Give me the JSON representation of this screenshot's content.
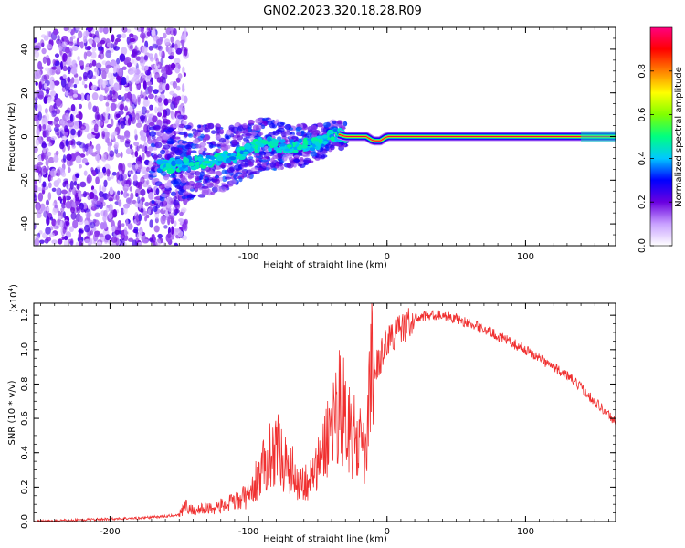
{
  "figure": {
    "title": "GN02.2023.320.18.28.R09"
  },
  "chart_data": [
    {
      "type": "heatmap",
      "xlabel": "Height of straight line (km)",
      "ylabel": "Frequency (Hz)",
      "xlim": [
        -255,
        165
      ],
      "ylim": [
        -50,
        50
      ],
      "xticks": [
        -200,
        -100,
        0,
        100
      ],
      "yticks": [
        -40,
        -20,
        0,
        20,
        40
      ],
      "colorbar": {
        "label": "Normalized spectral amplitude",
        "range": [
          0,
          1
        ],
        "ticks": [
          "0.0",
          "0.2",
          "0.4",
          "0.6",
          "0.8"
        ],
        "colors": [
          "#ffffff",
          "#c8a0ff",
          "#6a00e0",
          "#0000ff",
          "#00c8ff",
          "#00ff80",
          "#80ff00",
          "#ffff00",
          "#ff8000",
          "#ff0000",
          "#ff0080"
        ]
      },
      "ridge": {
        "x": [
          -170,
          -150,
          -130,
          -110,
          -100,
          -90,
          -80,
          -70,
          -60,
          -50,
          -40,
          -35,
          -30,
          -20,
          -15,
          -10,
          -5,
          0,
          20,
          50,
          75,
          100,
          130,
          165
        ],
        "y": [
          -14,
          -13,
          -11,
          -9,
          -6,
          -3,
          -4,
          -5,
          -4,
          -3,
          0,
          1,
          0,
          0,
          0,
          -2,
          -2,
          0,
          0,
          0,
          0,
          0,
          0,
          0
        ]
      }
    },
    {
      "type": "line",
      "xlabel": "Height of straight line (km)",
      "ylabel": "SNR (10 * v/v)",
      "yscale_note": "(x10",
      "yscale_exp": "4",
      "xlim": [
        -255,
        165
      ],
      "ylim": [
        0,
        1.27
      ],
      "xticks": [
        -200,
        -100,
        0,
        100
      ],
      "yticks": [
        "0.0",
        "0.2",
        "0.4",
        "0.6",
        "0.8",
        "1.0",
        "1.2"
      ],
      "color": "#f03030",
      "series": [
        {
          "x": [
            -255,
            -220,
            -180,
            -160,
            -150,
            -145,
            -140,
            -130,
            -120,
            -110,
            -100,
            -95,
            -90,
            -85,
            -80,
            -75,
            -70,
            -65,
            -60,
            -55,
            -50,
            -45,
            -40,
            -35,
            -30,
            -25,
            -20,
            -15,
            -10,
            -5,
            0,
            10,
            20,
            30,
            40,
            50,
            60,
            70,
            80,
            90,
            100,
            110,
            120,
            130,
            140,
            150,
            160,
            165
          ],
          "y": [
            0.0,
            0.01,
            0.02,
            0.03,
            0.04,
            0.07,
            0.05,
            0.06,
            0.07,
            0.09,
            0.12,
            0.18,
            0.24,
            0.3,
            0.35,
            0.28,
            0.25,
            0.2,
            0.18,
            0.2,
            0.25,
            0.35,
            0.45,
            0.55,
            0.5,
            0.4,
            0.35,
            0.3,
            0.85,
            0.95,
            1.05,
            1.12,
            1.18,
            1.2,
            1.2,
            1.18,
            1.15,
            1.12,
            1.08,
            1.04,
            1.0,
            0.95,
            0.9,
            0.85,
            0.78,
            0.7,
            0.62,
            0.58
          ]
        }
      ]
    }
  ]
}
